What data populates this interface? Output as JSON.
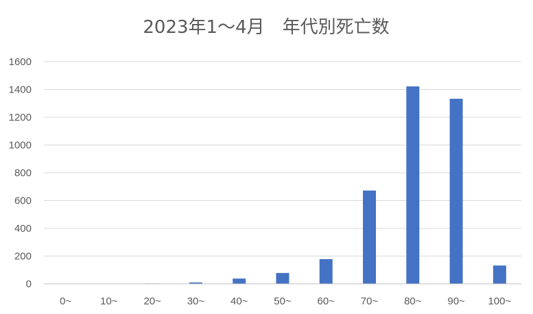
{
  "chart_data": {
    "type": "bar",
    "title": "2023年1～4月　年代別死亡数",
    "xlabel": "",
    "ylabel": "",
    "categories": [
      "0~",
      "10~",
      "20~",
      "30~",
      "40~",
      "50~",
      "60~",
      "70~",
      "80~",
      "90~",
      "100~"
    ],
    "values": [
      1,
      2,
      3,
      10,
      38,
      78,
      178,
      672,
      1422,
      1333,
      132
    ],
    "ylim": [
      0,
      1600
    ],
    "yticks": [
      0,
      200,
      400,
      600,
      800,
      1000,
      1200,
      1400,
      1600
    ],
    "grid": true,
    "legend": "none",
    "bar_color": "#4472c4"
  }
}
